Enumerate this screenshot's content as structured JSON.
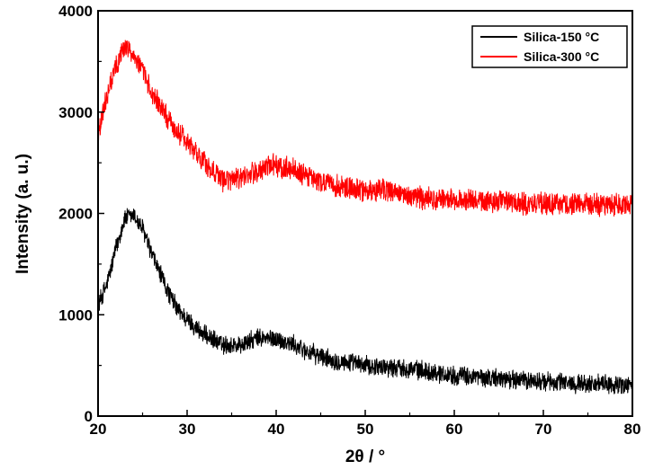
{
  "chart_data": {
    "type": "line",
    "xlabel": "2θ / °",
    "ylabel": "Intensity (a. u.)",
    "xlim": [
      20,
      80
    ],
    "ylim": [
      0,
      4000
    ],
    "x_ticks": [
      20,
      30,
      40,
      50,
      60,
      70,
      80
    ],
    "y_ticks": [
      0,
      1000,
      2000,
      3000,
      4000
    ],
    "grid": false,
    "legend_position": "top-right",
    "series": [
      {
        "name": "Silica-150 °C",
        "color": "#000000",
        "noise_amplitude": 110,
        "x": [
          20,
          21,
          22,
          23,
          24,
          25,
          26,
          27,
          28,
          29,
          30,
          32,
          34,
          36,
          38,
          40,
          42,
          44,
          46,
          50,
          55,
          60,
          65,
          70,
          75,
          80
        ],
        "y": [
          1100,
          1300,
          1650,
          1950,
          1980,
          1850,
          1600,
          1400,
          1200,
          1050,
          950,
          800,
          700,
          700,
          770,
          760,
          700,
          620,
          560,
          500,
          470,
          400,
          370,
          340,
          320,
          300
        ]
      },
      {
        "name": "Silica-300 °C",
        "color": "#ff0000",
        "noise_amplitude": 130,
        "x": [
          20,
          21,
          22,
          23,
          24,
          25,
          26,
          27,
          28,
          29,
          30,
          32,
          34,
          36,
          38,
          40,
          42,
          44,
          46,
          50,
          52,
          55,
          60,
          65,
          70,
          75,
          80
        ],
        "y": [
          2800,
          3150,
          3450,
          3650,
          3580,
          3400,
          3200,
          3050,
          2900,
          2800,
          2700,
          2500,
          2330,
          2330,
          2430,
          2480,
          2430,
          2340,
          2280,
          2220,
          2250,
          2160,
          2130,
          2110,
          2100,
          2090,
          2080
        ]
      }
    ]
  }
}
